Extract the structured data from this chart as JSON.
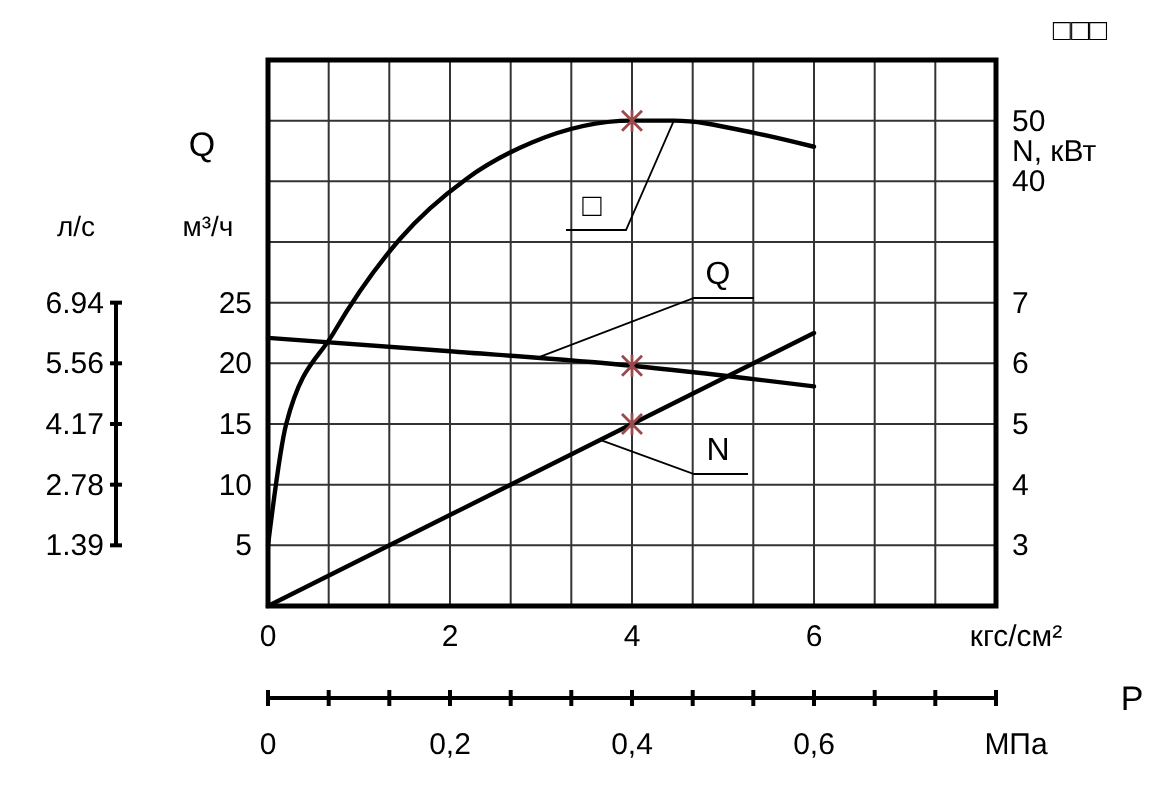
{
  "chart_data": {
    "type": "line",
    "xlabel": "кгс/см²",
    "x2label": "МПа",
    "ylabel": "м³/ч",
    "y2label": "N, кВт",
    "y3label": "□□□",
    "annotations": [
      "Q",
      "P",
      "л/с",
      "6.94",
      "5.56",
      "4.17",
      "2.78",
      "1.39"
    ],
    "xlim": [
      0,
      8
    ],
    "xticks": [
      0,
      {
        "value": 0.667,
        "label": null
      },
      {
        "value": 1.333,
        "label": null
      },
      2,
      {
        "value": 2.667,
        "label": null
      },
      {
        "value": 3.333,
        "label": null
      },
      4,
      {
        "value": 4.667,
        "label": null
      },
      {
        "value": 5.333,
        "label": null
      },
      6,
      {
        "value": 6.667,
        "label": null
      },
      {
        "value": 7.333,
        "label": null
      },
      {
        "value": 8,
        "label": null
      }
    ],
    "x2lim": [
      0,
      0.8
    ],
    "x2ticks": [
      0,
      {
        "value": 0.0667,
        "label": null
      },
      {
        "value": 0.1333,
        "label": null
      },
      {
        "value": 0.2,
        "label": "0,2"
      },
      {
        "value": 0.2667,
        "label": null
      },
      {
        "value": 0.3333,
        "label": null
      },
      {
        "value": 0.4,
        "label": "0,4"
      },
      {
        "value": 0.4667,
        "label": null
      },
      {
        "value": 0.5333,
        "label": null
      },
      {
        "value": 0.6,
        "label": "0,6"
      },
      {
        "value": 0.6667,
        "label": null
      },
      {
        "value": 0.7333,
        "label": null
      },
      {
        "value": 0.8,
        "label": null
      }
    ],
    "ylim": [
      0,
      45
    ],
    "yticks": [
      {
        "value": 0,
        "label": null
      },
      5,
      10,
      15,
      20,
      25,
      {
        "value": 30,
        "label": null
      },
      {
        "value": 35,
        "label": null
      },
      {
        "value": 40,
        "label": null
      },
      {
        "value": 45,
        "label": null
      }
    ],
    "y2lim": [
      2,
      11
    ],
    "y2ticks": [
      3,
      4,
      5,
      6,
      7
    ],
    "y3lim": [
      -30,
      60
    ],
    "y3ticks": [
      40,
      50
    ],
    "grid": true,
    "series": [
      {
        "name": "□",
        "axis": "y3",
        "color": "#000000",
        "x": [
          0,
          0.2,
          0.72,
          1.45,
          2.18,
          2.9,
          4,
          4.46,
          5.34,
          6
        ],
        "values": [
          -20,
          0,
          15,
          30.5,
          40.4,
          46.4,
          50,
          50,
          48,
          45.7
        ]
      },
      {
        "name": "Q",
        "axis": "y",
        "color": "#000000",
        "x": [
          0,
          2,
          4,
          6
        ],
        "values": [
          22.1,
          21.0,
          19.8,
          18.1
        ]
      },
      {
        "name": "N",
        "axis": "y2",
        "color": "#000000",
        "x": [
          0,
          4,
          6
        ],
        "values": [
          2,
          5,
          6.5
        ]
      },
      {
        "type": "scatter",
        "marker": "cross",
        "axis": "y3",
        "color": "#9a4a4a",
        "x": [
          4
        ],
        "values": [
          50
        ]
      },
      {
        "type": "scatter",
        "marker": "cross",
        "axis": "y",
        "color": "#9a4a4a",
        "x": [
          4
        ],
        "values": [
          19.8
        ]
      },
      {
        "type": "scatter",
        "marker": "cross",
        "axis": "y2",
        "color": "#9a4a4a",
        "x": [
          4
        ],
        "values": [
          5.0
        ]
      }
    ]
  }
}
